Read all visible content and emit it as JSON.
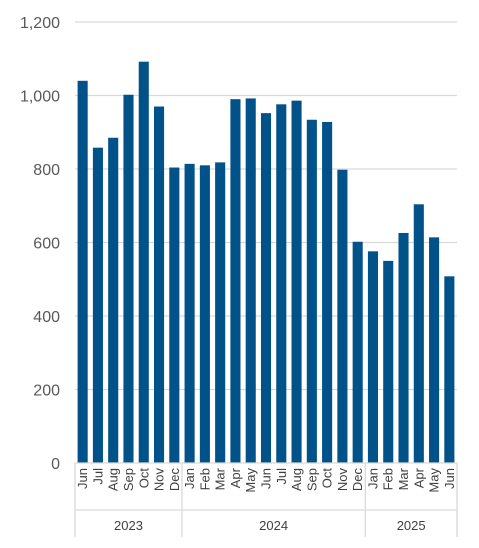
{
  "chart_data": {
    "type": "bar",
    "title": "",
    "xlabel": "",
    "ylabel": "",
    "ylim": [
      0,
      1200
    ],
    "yticks": [
      0,
      200,
      400,
      600,
      800,
      1000,
      1200
    ],
    "ytick_labels": [
      "0",
      "200",
      "400",
      "600",
      "800",
      "1,000",
      "1,200"
    ],
    "grid": "horizontal",
    "bar_color": "#005288",
    "categories": [
      "Jun",
      "Jul",
      "Aug",
      "Sep",
      "Oct",
      "Nov",
      "Dec",
      "Jan",
      "Feb",
      "Mar",
      "Apr",
      "May",
      "Jun",
      "Jul",
      "Aug",
      "Sep",
      "Oct",
      "Nov",
      "Dec",
      "Jan",
      "Feb",
      "Mar",
      "Apr",
      "May",
      "Jun"
    ],
    "values": [
      1040,
      858,
      885,
      1002,
      1092,
      970,
      804,
      814,
      810,
      818,
      990,
      992,
      952,
      976,
      986,
      934,
      928,
      798,
      602,
      576,
      550,
      626,
      704,
      614,
      508
    ],
    "year_groups": [
      {
        "label": "2023",
        "count": 7
      },
      {
        "label": "2024",
        "count": 12
      },
      {
        "label": "2025",
        "count": 6
      }
    ]
  }
}
